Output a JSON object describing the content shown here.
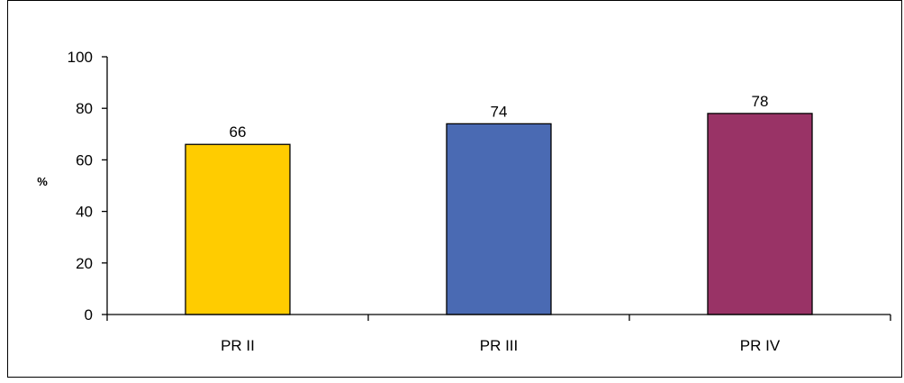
{
  "chart_data": {
    "type": "bar",
    "categories": [
      "PR II",
      "PR III",
      "PR IV"
    ],
    "values": [
      66,
      74,
      78
    ],
    "data_labels": [
      "66",
      "74",
      "78"
    ],
    "ylabel": "%",
    "ylim": [
      0,
      100
    ],
    "yticks": [
      0,
      20,
      40,
      60,
      80,
      100
    ],
    "ytick_labels": [
      "0",
      "20",
      "40",
      "60",
      "80",
      "100"
    ],
    "colors": [
      "#FFCC00",
      "#4A6AB3",
      "#993366"
    ],
    "grid": false,
    "legend": "none"
  }
}
